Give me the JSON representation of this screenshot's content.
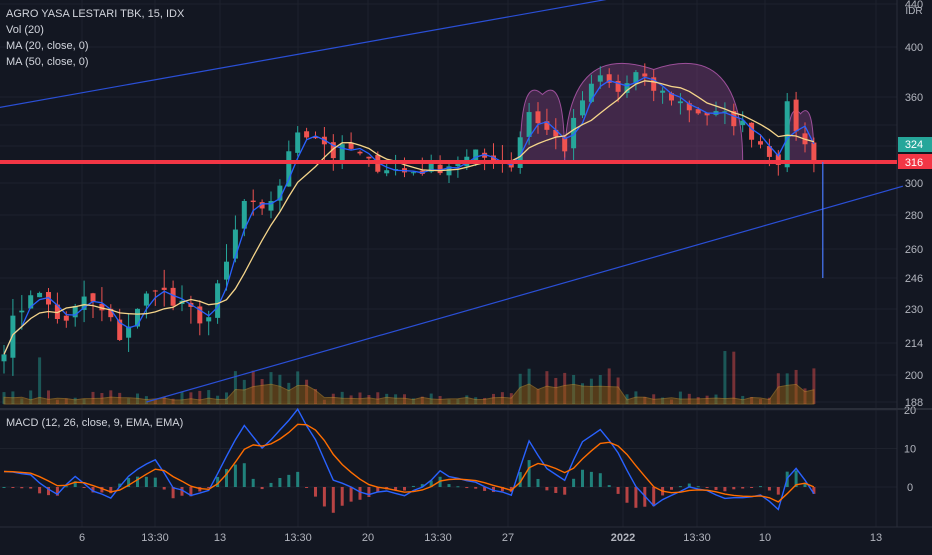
{
  "header": {
    "symbol_line": "AGRO YASA LESTARI TBK, 15, IDX",
    "indicators": [
      "Vol (20)",
      "MA (20, close, 0)",
      "MA (50, close, 0)"
    ],
    "macd_label": "MACD (12, 26, close, 9, EMA, EMA)"
  },
  "colors": {
    "background": "#131722",
    "grid": "#1e222d",
    "up": "#26a69a",
    "down": "#ef5350",
    "ma20": "#2962ff",
    "ma50": "#f5d58a",
    "trendline": "#2a4fd6",
    "resistance": "#f23645",
    "arc_fill": "#7b3f7a",
    "arc_stroke": "#9c4f9a",
    "vol_area": "#8a5a14",
    "macd_line": "#2962ff",
    "signal_line": "#ff6d00"
  },
  "chart_data": [
    {
      "type": "candlestick",
      "title": "AGRO YASA LESTARI TBK, 15, IDX",
      "currency": "IDR",
      "y_ticks": [
        188,
        200,
        214,
        230,
        246,
        260,
        280,
        300,
        316,
        324,
        340,
        360,
        400,
        440
      ],
      "y_tick_labels": [
        "188",
        "200",
        "214",
        "230",
        "246",
        "260",
        "280",
        "300",
        "",
        "",
        "",
        "360",
        "400",
        "440"
      ],
      "x_tick_labels": [
        "6",
        "13:30",
        "13",
        "13:30",
        "20",
        "13:30",
        "27",
        "2022",
        "13:30",
        "10",
        "13"
      ],
      "last_price": 316,
      "last_price_label": "316",
      "prev_price_label": "324",
      "horizontal_line": 316,
      "close_path": [
        {
          "t": 0,
          "p": 214
        },
        {
          "t": 3,
          "p": 240
        },
        {
          "t": 5,
          "p": 232
        },
        {
          "t": 7,
          "p": 222
        },
        {
          "t": 9,
          "p": 236
        },
        {
          "t": 11,
          "p": 228
        },
        {
          "t": 13,
          "p": 218
        },
        {
          "t": 15,
          "p": 228
        },
        {
          "t": 17,
          "p": 244
        },
        {
          "t": 19,
          "p": 232
        },
        {
          "t": 21,
          "p": 228
        },
        {
          "t": 23,
          "p": 226
        },
        {
          "t": 25,
          "p": 252
        },
        {
          "t": 27,
          "p": 288
        },
        {
          "t": 29,
          "p": 280
        },
        {
          "t": 31,
          "p": 300
        },
        {
          "t": 33,
          "p": 336
        },
        {
          "t": 35,
          "p": 332
        },
        {
          "t": 37,
          "p": 320
        },
        {
          "t": 39,
          "p": 322
        },
        {
          "t": 41,
          "p": 314
        },
        {
          "t": 43,
          "p": 312
        },
        {
          "t": 45,
          "p": 308
        },
        {
          "t": 47,
          "p": 310
        },
        {
          "t": 49,
          "p": 312
        },
        {
          "t": 51,
          "p": 316
        },
        {
          "t": 53,
          "p": 318
        },
        {
          "t": 55,
          "p": 318
        },
        {
          "t": 57,
          "p": 314
        },
        {
          "t": 59,
          "p": 350
        },
        {
          "t": 61,
          "p": 336
        },
        {
          "t": 63,
          "p": 324
        },
        {
          "t": 65,
          "p": 358
        },
        {
          "t": 67,
          "p": 376
        },
        {
          "t": 69,
          "p": 364
        },
        {
          "t": 71,
          "p": 378
        },
        {
          "t": 73,
          "p": 366
        },
        {
          "t": 75,
          "p": 360
        },
        {
          "t": 77,
          "p": 352
        },
        {
          "t": 79,
          "p": 348
        },
        {
          "t": 81,
          "p": 346
        },
        {
          "t": 83,
          "p": 340
        },
        {
          "t": 85,
          "p": 326
        },
        {
          "t": 87,
          "p": 318
        },
        {
          "t": 88,
          "p": 352
        },
        {
          "t": 90,
          "p": 324
        },
        {
          "t": 91,
          "p": 316
        }
      ],
      "overlays": {
        "upper_trendline": [
          {
            "t": -1,
            "p": 352
          },
          {
            "t": 72,
            "p": 452
          }
        ],
        "lower_trendline": [
          {
            "t": 16,
            "p": 188
          },
          {
            "t": 101,
            "p": 298
          }
        ],
        "drop_line": {
          "t": 92,
          "from": 316,
          "to": 246
        },
        "arcs": [
          {
            "from_t": 58,
            "to_t": 63,
            "base": 316,
            "peak": 362
          },
          {
            "from_t": 63,
            "to_t": 83,
            "base": 316,
            "peak": 382
          },
          {
            "from_t": 88,
            "to_t": 91,
            "base": 316,
            "peak": 348
          }
        ]
      }
    },
    {
      "type": "bar",
      "name": "MACD (12, 26, close, 9, EMA, EMA)",
      "y_ticks": [
        20,
        10,
        0
      ],
      "y_tick_labels": [
        "20",
        "10",
        "0"
      ],
      "ylim": [
        -7,
        21
      ],
      "macd_path": [
        {
          "t": 0,
          "v": 4
        },
        {
          "t": 3,
          "v": 3
        },
        {
          "t": 6,
          "v": -2
        },
        {
          "t": 8,
          "v": 3
        },
        {
          "t": 10,
          "v": -1
        },
        {
          "t": 12,
          "v": -3
        },
        {
          "t": 14,
          "v": 3
        },
        {
          "t": 17,
          "v": 7
        },
        {
          "t": 19,
          "v": 0
        },
        {
          "t": 21,
          "v": -2
        },
        {
          "t": 23,
          "v": -1
        },
        {
          "t": 25,
          "v": 8
        },
        {
          "t": 27,
          "v": 16
        },
        {
          "t": 29,
          "v": 10
        },
        {
          "t": 31,
          "v": 15
        },
        {
          "t": 33,
          "v": 20
        },
        {
          "t": 35,
          "v": 12
        },
        {
          "t": 37,
          "v": 2
        },
        {
          "t": 39,
          "v": 0
        },
        {
          "t": 41,
          "v": -2
        },
        {
          "t": 43,
          "v": -1
        },
        {
          "t": 45,
          "v": -2
        },
        {
          "t": 47,
          "v": 0
        },
        {
          "t": 49,
          "v": 4
        },
        {
          "t": 51,
          "v": 2
        },
        {
          "t": 53,
          "v": 1
        },
        {
          "t": 55,
          "v": -1
        },
        {
          "t": 57,
          "v": -2
        },
        {
          "t": 59,
          "v": 12
        },
        {
          "t": 61,
          "v": 5
        },
        {
          "t": 63,
          "v": 2
        },
        {
          "t": 65,
          "v": 12
        },
        {
          "t": 67,
          "v": 15
        },
        {
          "t": 69,
          "v": 9
        },
        {
          "t": 71,
          "v": 0
        },
        {
          "t": 73,
          "v": -5
        },
        {
          "t": 75,
          "v": -2
        },
        {
          "t": 77,
          "v": 0
        },
        {
          "t": 79,
          "v": -1
        },
        {
          "t": 81,
          "v": -3
        },
        {
          "t": 83,
          "v": -3
        },
        {
          "t": 85,
          "v": -2
        },
        {
          "t": 87,
          "v": -6
        },
        {
          "t": 88,
          "v": 2
        },
        {
          "t": 89,
          "v": 5
        },
        {
          "t": 91,
          "v": -2
        }
      ]
    }
  ]
}
